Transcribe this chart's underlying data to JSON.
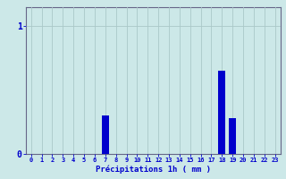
{
  "hours": [
    0,
    1,
    2,
    3,
    4,
    5,
    6,
    7,
    8,
    9,
    10,
    11,
    12,
    13,
    14,
    15,
    16,
    17,
    18,
    19,
    20,
    21,
    22,
    23
  ],
  "values": [
    0,
    0,
    0,
    0,
    0,
    0,
    0,
    0.3,
    0,
    0,
    0,
    0,
    0,
    0,
    0,
    0,
    0,
    0,
    0.65,
    0.28,
    0,
    0,
    0,
    0
  ],
  "bar_color": "#0000cc",
  "background_color": "#cce8e8",
  "grid_color": "#aac8c8",
  "axis_color": "#666688",
  "xlabel": "Précipitations 1h ( mm )",
  "xlabel_color": "#0000cc",
  "tick_color": "#0000cc",
  "ylim_max": 1.15,
  "xlim_min": -0.5,
  "xlim_max": 23.5,
  "bar_width": 0.7
}
